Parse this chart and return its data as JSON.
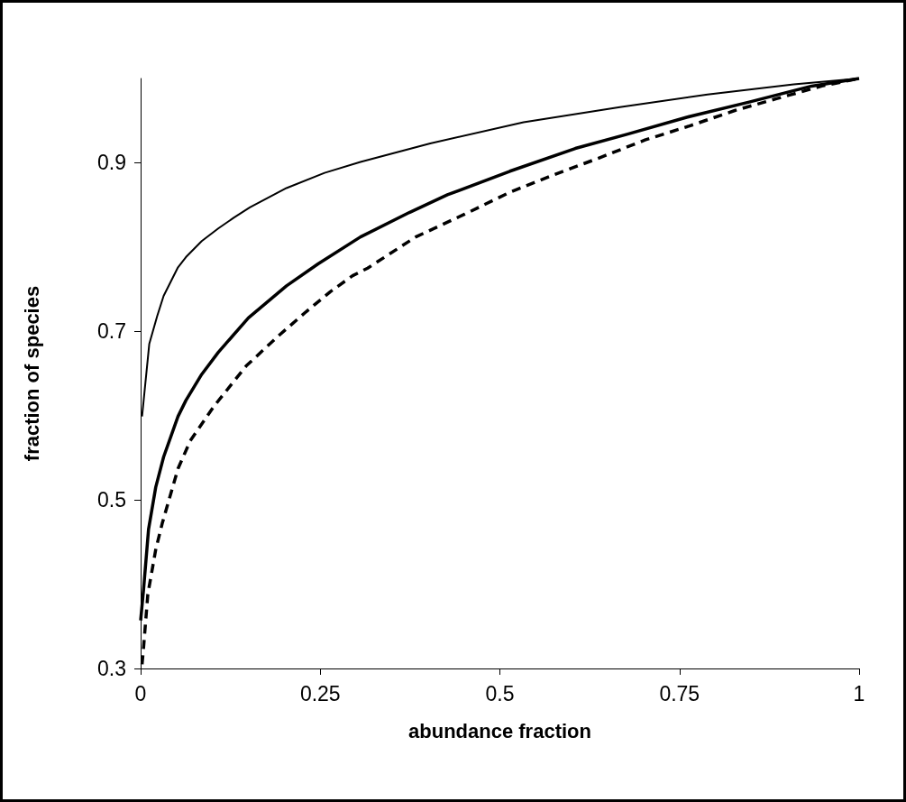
{
  "chart_data": {
    "type": "line",
    "xlabel": "abundance fraction",
    "ylabel": "fraction of species",
    "xlim": [
      0,
      1
    ],
    "xticks": [
      0,
      0.25,
      0.5,
      0.75,
      1
    ],
    "ylim": [
      0.3,
      1
    ],
    "yticks": [
      0.3,
      0.5,
      0.7,
      0.9
    ],
    "grid": false,
    "marker": "none",
    "series": [
      {
        "color": "#000000",
        "line_style": "solid",
        "x": [
          0.002,
          0.012,
          0.023,
          0.032,
          0.052,
          0.063,
          0.085,
          0.108,
          0.13,
          0.152,
          0.203,
          0.256,
          0.306,
          0.403,
          0.533,
          0.667,
          0.789,
          0.909,
          1
        ],
        "values": [
          0.599,
          0.685,
          0.718,
          0.742,
          0.776,
          0.788,
          0.807,
          0.822,
          0.835,
          0.847,
          0.87,
          0.888,
          0.901,
          0.923,
          0.948,
          0.966,
          0.981,
          0.993,
          1
        ]
      },
      {
        "color": "#000000",
        "line_style": "solid",
        "x": [
          0,
          0.004,
          0.011,
          0.021,
          0.032,
          0.052,
          0.063,
          0.085,
          0.108,
          0.15,
          0.203,
          0.247,
          0.306,
          0.374,
          0.427,
          0.514,
          0.605,
          0.678,
          0.76,
          0.847,
          0.934,
          1
        ],
        "values": [
          0.357,
          0.393,
          0.465,
          0.515,
          0.551,
          0.599,
          0.618,
          0.649,
          0.675,
          0.716,
          0.754,
          0.78,
          0.812,
          0.841,
          0.862,
          0.89,
          0.917,
          0.934,
          0.954,
          0.972,
          0.991,
          1
        ]
      },
      {
        "color": "#000000",
        "line_style": "dashed",
        "x": [
          0.002,
          0.004,
          0.01,
          0.021,
          0.03,
          0.052,
          0.069,
          0.102,
          0.147,
          0.191,
          0.23,
          0.264,
          0.295,
          0.316,
          0.383,
          0.451,
          0.514,
          0.576,
          0.639,
          0.702,
          0.765,
          0.827,
          0.885,
          0.948,
          1
        ],
        "values": [
          0.305,
          0.324,
          0.388,
          0.441,
          0.472,
          0.537,
          0.57,
          0.611,
          0.659,
          0.694,
          0.723,
          0.747,
          0.766,
          0.775,
          0.812,
          0.839,
          0.865,
          0.886,
          0.906,
          0.927,
          0.944,
          0.962,
          0.976,
          0.991,
          1
        ]
      }
    ]
  }
}
